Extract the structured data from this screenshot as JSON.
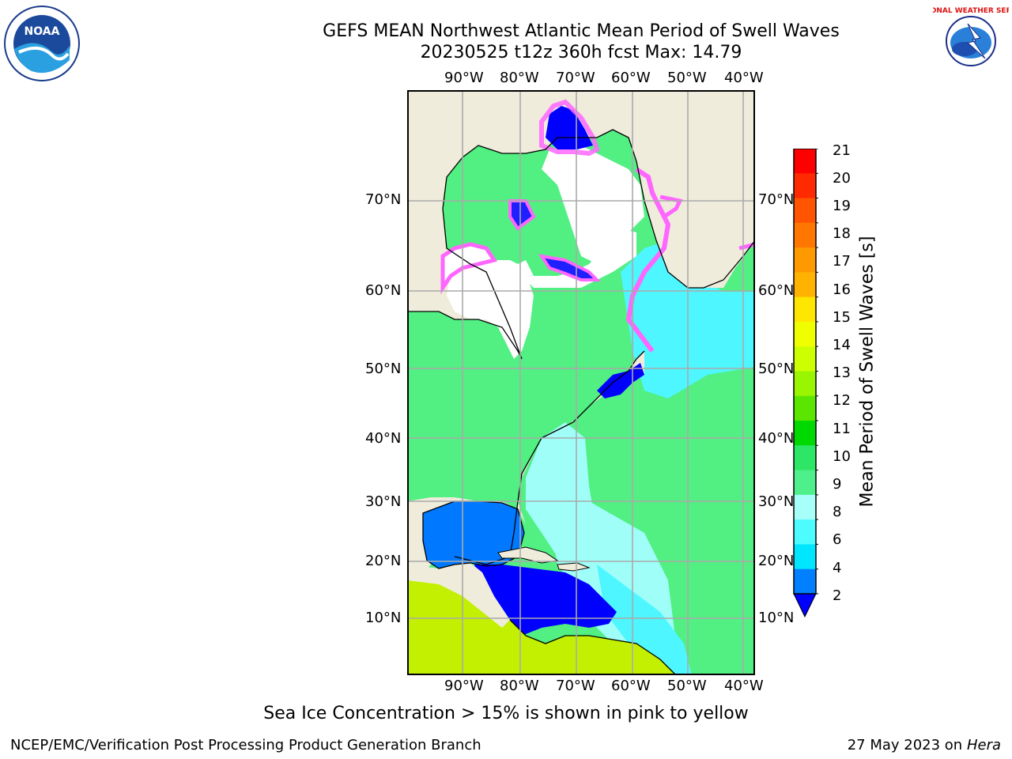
{
  "header": {
    "title": "GEFS MEAN Northwest Atlantic Mean Period of Swell Waves",
    "subtitle": "20230525 t12z 360h fcst   Max: 14.79"
  },
  "logos": {
    "left": {
      "text": "NOAA",
      "icon": "noaa-logo"
    },
    "right": {
      "text": "NATIONAL WEATHER SERVICE",
      "icon": "nws-logo"
    }
  },
  "map": {
    "lon_labels": [
      "90°W",
      "80°W",
      "70°W",
      "60°W",
      "50°W",
      "40°W"
    ],
    "lat_labels": [
      "70°N",
      "60°N",
      "50°N",
      "40°N",
      "30°N",
      "20°N",
      "10°N"
    ]
  },
  "colorbar": {
    "title": "Mean Period of Swell Waves [s]",
    "ticks": [
      "21",
      "20",
      "19",
      "18",
      "17",
      "16",
      "15",
      "14",
      "13",
      "12",
      "11",
      "10",
      "9",
      "8",
      "6",
      "4",
      "2"
    ],
    "colors": [
      "#ff0000",
      "#ff2a00",
      "#ff5500",
      "#ff7700",
      "#ff9900",
      "#ffb300",
      "#ffe600",
      "#f0ff00",
      "#ccff00",
      "#99f500",
      "#5ae600",
      "#00d900",
      "#2ee665",
      "#4df08a",
      "#a6fff9",
      "#4dfcff",
      "#00e6ff",
      "#0080ff"
    ],
    "under_color": "#0000ff"
  },
  "colors": {
    "land": "#efecdc",
    "ice": "#ffffff",
    "deep_blue": "#0000ff",
    "blue": "#0078ff",
    "cyan": "#4ef6ff",
    "light_cyan": "#9ffff8",
    "green": "#52ef83",
    "yellow_green": "#c2f000",
    "ice_pink": "#ff66ff",
    "ice_orange": "#ffaa33"
  },
  "footer": {
    "note": "Sea Ice Concentration > 15% is shown in pink to yellow",
    "credit": "NCEP/EMC/Verification Post Processing Product Generation Branch",
    "date": "27 May 2023 on",
    "machine": "Hera"
  }
}
